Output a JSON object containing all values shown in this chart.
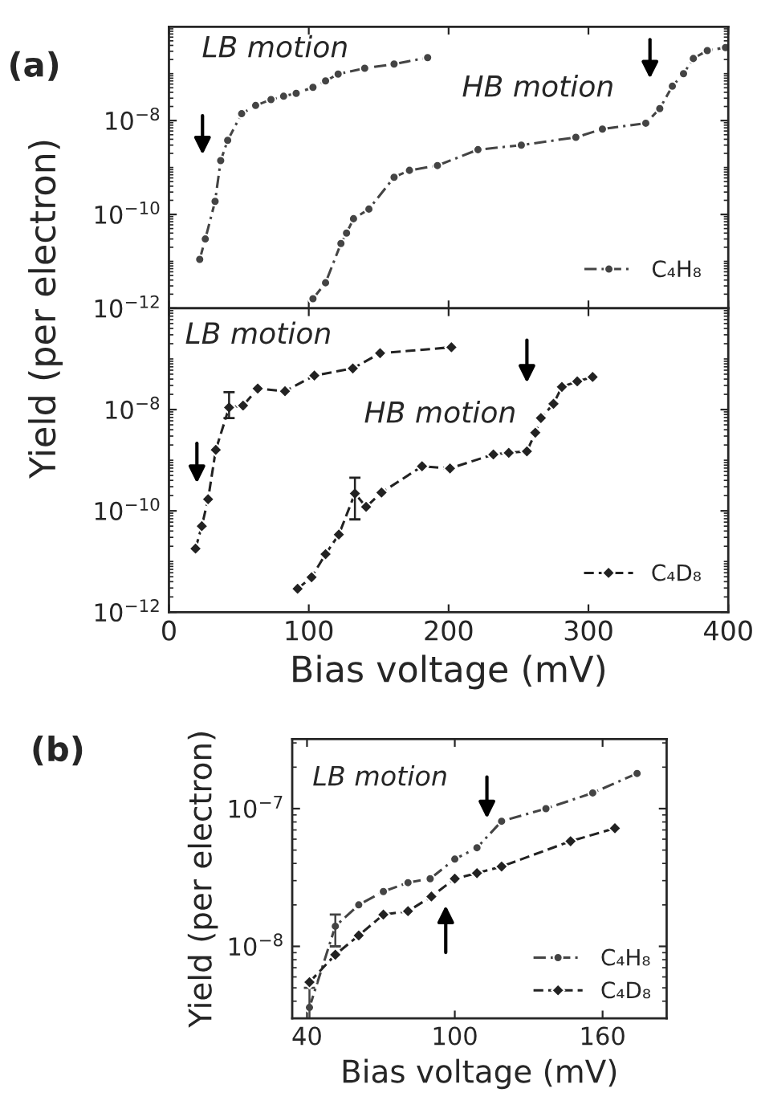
{
  "chart_data": [
    {
      "type": "line",
      "annotations": [
        "(a)",
        "LB motion",
        "HB motion"
      ],
      "ylabel": "Yield (per electron)",
      "log": "y",
      "xlim": [
        0,
        400
      ],
      "xticks": [
        0,
        100,
        200,
        300,
        400
      ],
      "ylim": [
        1e-12,
        1e-06
      ],
      "yticks": [
        {
          "value": 1e-12,
          "label": "10$^{−12}$"
        },
        {
          "value": 1e-10,
          "label": "10$^{−10}$"
        },
        {
          "value": 1e-08,
          "label": "10$^{−8}$"
        }
      ],
      "tick_labels": "y",
      "legend": "lower right",
      "grid": false,
      "series": [
        {
          "name": "C₄H₈",
          "color": "#444444",
          "marker": "circle",
          "line_style": "dashdot",
          "x": [
            22,
            26,
            33,
            37,
            42,
            52,
            62,
            73,
            82,
            91,
            103,
            112,
            121,
            140,
            161,
            185
          ],
          "values": [
            1.1e-11,
            3e-11,
            1.9e-10,
            1.4e-09,
            3.8e-09,
            1.4e-08,
            2.1e-08,
            2.8e-08,
            3.3e-08,
            3.8e-08,
            5.1e-08,
            7e-08,
            9.8e-08,
            1.3e-07,
            1.6e-07,
            2.2e-07
          ]
        },
        {
          "color": "#444444",
          "marker": "circle",
          "line_style": "dashdot",
          "x": [
            103,
            112,
            123,
            127,
            132,
            143,
            161,
            172,
            192,
            221,
            252,
            291,
            310,
            341,
            351,
            360,
            368,
            375,
            385,
            398
          ],
          "values": [
            1.6e-12,
            3.5e-12,
            2.4e-11,
            4e-11,
            8.1e-11,
            1.3e-10,
            6.2e-10,
            8.7e-10,
            1.1e-09,
            2.4e-09,
            3e-09,
            4.4e-09,
            6.6e-09,
            8.8e-09,
            1.8e-08,
            5.4e-08,
            1e-07,
            2.1e-07,
            3.1e-07,
            3.6e-07
          ]
        }
      ]
    },
    {
      "type": "line",
      "annotations": [
        "LB motion",
        "HB motion"
      ],
      "xlabel": "Bias voltage (mV)",
      "log": "y",
      "xlim": [
        0,
        400
      ],
      "xticks": [
        0,
        100,
        200,
        300,
        400
      ],
      "ylim": [
        1e-12,
        1e-06
      ],
      "yticks": [
        {
          "value": 1e-12,
          "label": "10$^{−12}$"
        },
        {
          "value": 1e-10,
          "label": "10$^{−10}$"
        },
        {
          "value": 1e-08,
          "label": "10$^{−8}$"
        }
      ],
      "legend": "lower right",
      "grid": false,
      "series": [
        {
          "name": "C₄D₈",
          "color": "#222222",
          "marker": "diamond",
          "line_style": "dashed",
          "x": [
            19,
            23.5,
            28,
            33.5,
            43,
            53,
            63.5,
            83,
            104,
            131.5,
            151,
            202
          ],
          "values": [
            1.8e-11,
            5e-11,
            1.7e-10,
            1.6e-09,
            1.1e-08,
            1.2e-08,
            2.6e-08,
            2.3e-08,
            4.7e-08,
            6.5e-08,
            1.3e-07,
            1.7e-07
          ],
          "errors": [
            null,
            null,
            null,
            null,
            [
              6.8e-09,
              2.2e-08
            ],
            null,
            null,
            null,
            null,
            null,
            null,
            null
          ]
        },
        {
          "color": "#222222",
          "marker": "diamond",
          "line_style": "dashed",
          "x": [
            92,
            102,
            112,
            121.5,
            133,
            141,
            152,
            181,
            201,
            232,
            243,
            256,
            262,
            266,
            275,
            281,
            292,
            303
          ],
          "values": [
            2.9e-12,
            4.9e-12,
            1.4e-11,
            3.4e-11,
            2.2e-10,
            1.2e-10,
            2.3e-10,
            7.6e-10,
            6.9e-10,
            1.3e-09,
            1.4e-09,
            1.5e-09,
            3.5e-09,
            6.8e-09,
            1.3e-08,
            2.8e-08,
            3.6e-08,
            4.4e-08
          ],
          "errors": [
            null,
            null,
            null,
            null,
            [
              6.8e-11,
              4.5e-10
            ],
            null,
            null,
            null,
            null,
            null,
            null,
            null,
            null,
            null,
            null,
            null,
            null,
            null
          ]
        }
      ]
    },
    {
      "type": "line",
      "annotations": [
        "(b)",
        "LB motion"
      ],
      "xlabel": "Bias voltage (mV)",
      "ylabel": "Yield (per electron)",
      "log": "y",
      "xlim": [
        34,
        186
      ],
      "xticks": [
        40,
        100,
        160
      ],
      "ylim": [
        3e-09,
        3.2e-07
      ],
      "yticks": [
        {
          "value": 1e-08,
          "label": "10$^{−8}$"
        },
        {
          "value": 1e-07,
          "label": "10$^{−7}$"
        }
      ],
      "legend": "lower right",
      "grid": false,
      "series": [
        {
          "name": "C₄H₈",
          "color": "#444444",
          "marker": "circle",
          "line_style": "dashdot",
          "x": [
            41,
            51.5,
            61,
            71,
            81,
            90,
            100,
            109,
            119,
            137,
            156,
            174
          ],
          "values": [
            3.6e-09,
            1.4e-08,
            2e-08,
            2.5e-08,
            2.9e-08,
            3.1e-08,
            4.3e-08,
            5.2e-08,
            8.1e-08,
            1e-07,
            1.3e-07,
            1.8e-07
          ],
          "errors": [
            [
              2.9e-09,
              5e-09
            ],
            [
              1e-08,
              1.7e-08
            ],
            null,
            null,
            null,
            null,
            null,
            null,
            null,
            null,
            null,
            null
          ]
        },
        {
          "name": "C₄D₈",
          "color": "#222222",
          "marker": "diamond",
          "line_style": "dashed",
          "x": [
            41,
            51.5,
            61,
            71,
            81,
            90.5,
            100,
            109,
            119,
            147,
            165
          ],
          "values": [
            5.5e-09,
            8.7e-09,
            1.2e-08,
            1.7e-08,
            1.8e-08,
            2.3e-08,
            3.1e-08,
            3.4e-08,
            3.8e-08,
            5.8e-08,
            7.2e-08
          ]
        }
      ]
    }
  ]
}
